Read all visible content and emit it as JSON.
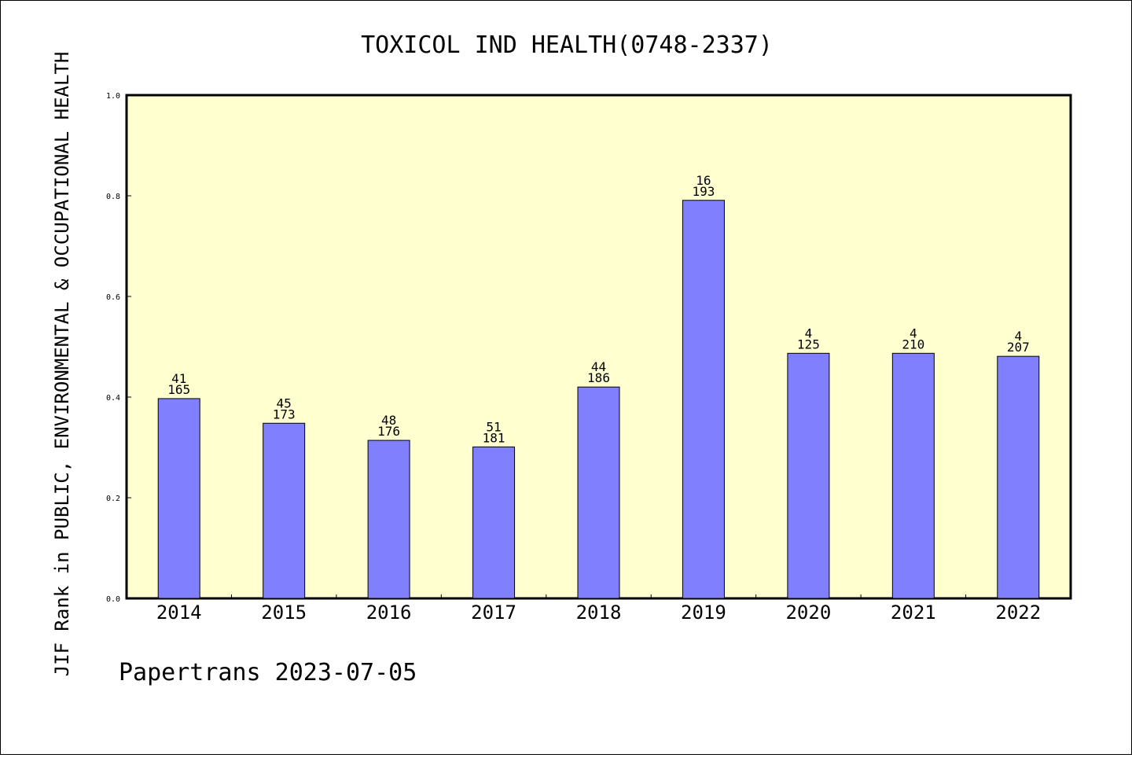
{
  "chart_data": {
    "type": "bar",
    "title": "TOXICOL IND HEALTH(0748-2337)",
    "ylabel": "JIF Rank in PUBLIC, ENVIRONMENTAL & OCCUPATIONAL HEALTH",
    "xlabel": "",
    "footer": "Papertrans 2023-07-05",
    "ylim": [
      0,
      1.0
    ],
    "yticks": [
      "0.0",
      "0.2",
      "0.4",
      "0.6",
      "0.8",
      "1.0"
    ],
    "categories": [
      "2014",
      "2015",
      "2016",
      "2017",
      "2018",
      "2019",
      "2020",
      "2021",
      "2022"
    ],
    "values": [
      0.397,
      0.348,
      0.314,
      0.301,
      0.42,
      0.791,
      0.487,
      0.487,
      0.481
    ],
    "rank_labels": [
      "41",
      "45",
      "48",
      "51",
      "44",
      "16",
      "4",
      "4",
      "4"
    ],
    "total_labels": [
      "165",
      "173",
      "176",
      "181",
      "186",
      "193",
      "125",
      "210",
      "207"
    ],
    "grid": false,
    "colors": {
      "bar": "#8080ff",
      "plot_bg": "#ffffd0",
      "bar_edge": "#000000"
    }
  }
}
